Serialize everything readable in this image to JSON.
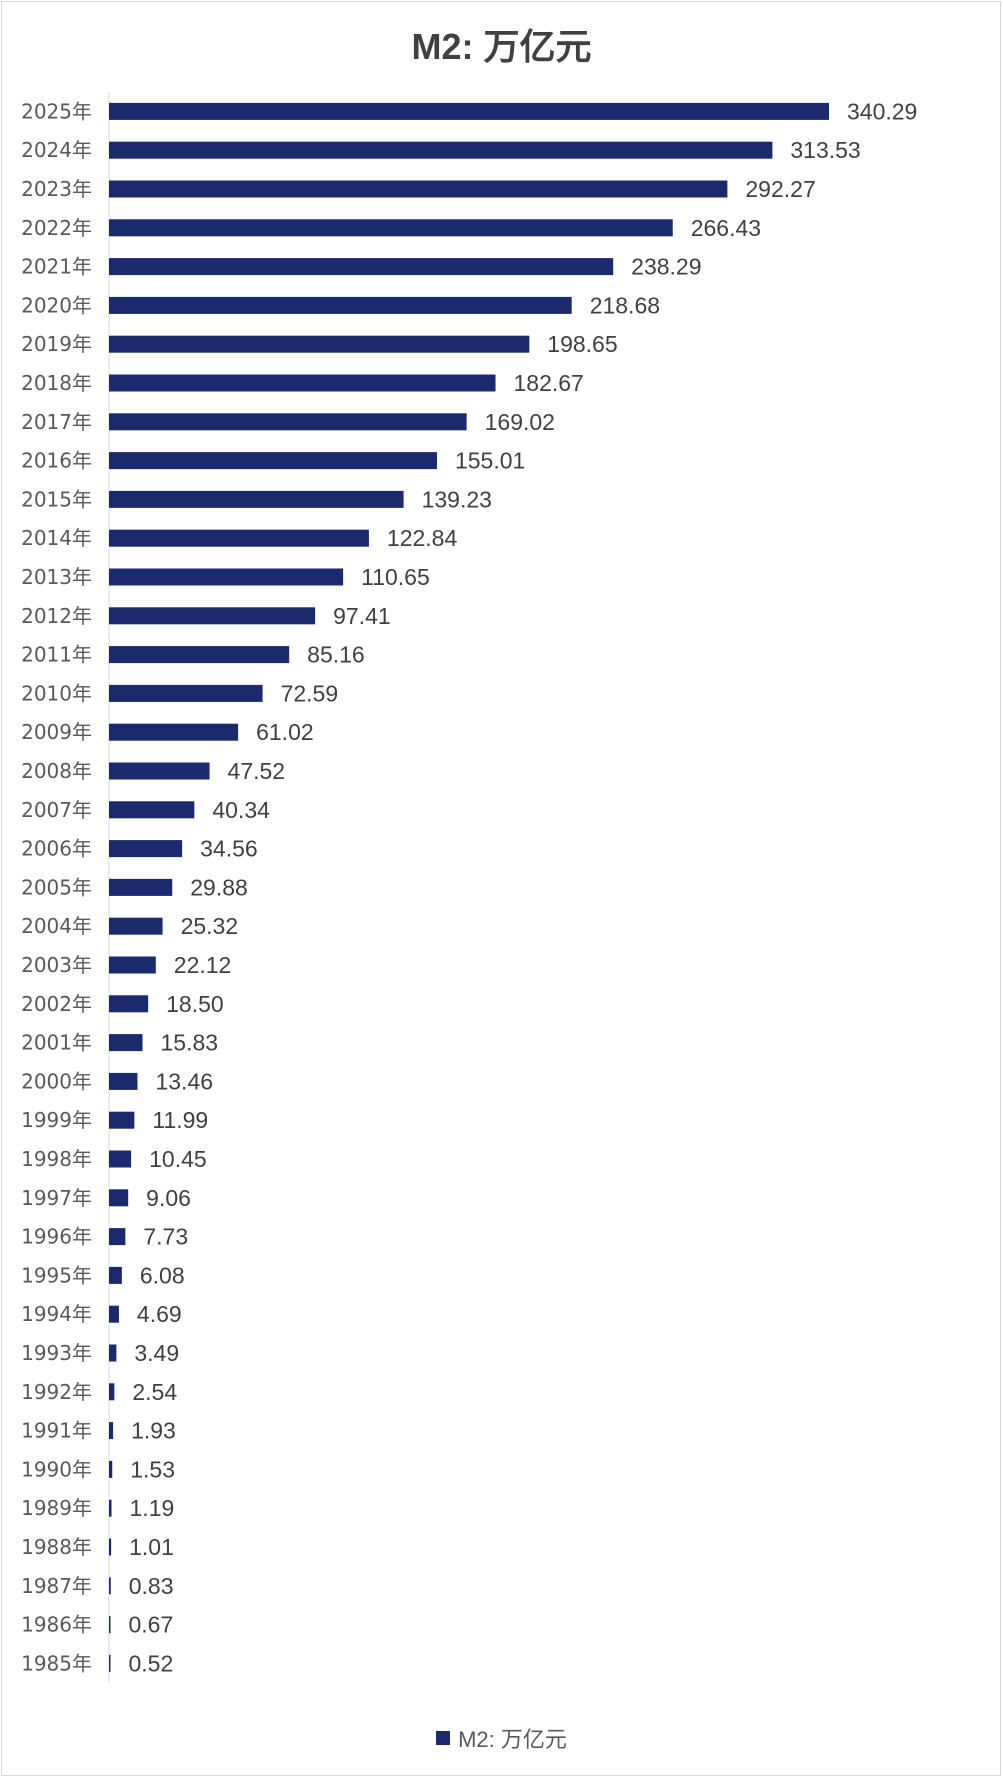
{
  "chart_data": {
    "type": "bar",
    "orientation": "horizontal",
    "title": "M2: 万亿元",
    "categories": [
      "2025年",
      "2024年",
      "2023年",
      "2022年",
      "2021年",
      "2020年",
      "2019年",
      "2018年",
      "2017年",
      "2016年",
      "2015年",
      "2014年",
      "2013年",
      "2012年",
      "2011年",
      "2010年",
      "2009年",
      "2008年",
      "2007年",
      "2006年",
      "2005年",
      "2004年",
      "2003年",
      "2002年",
      "2001年",
      "2000年",
      "1999年",
      "1998年",
      "1997年",
      "1996年",
      "1995年",
      "1994年",
      "1993年",
      "1992年",
      "1991年",
      "1990年",
      "1989年",
      "1988年",
      "1987年",
      "1986年",
      "1985年"
    ],
    "series": [
      {
        "name": "M2: 万亿元",
        "values": [
          340.29,
          313.53,
          292.27,
          266.43,
          238.29,
          218.68,
          198.65,
          182.67,
          169.02,
          155.01,
          139.23,
          122.84,
          110.65,
          97.41,
          85.16,
          72.59,
          61.02,
          47.52,
          40.34,
          34.56,
          29.88,
          25.32,
          22.12,
          18.5,
          15.83,
          13.46,
          11.99,
          10.45,
          9.06,
          7.73,
          6.08,
          4.69,
          3.49,
          2.54,
          1.93,
          1.53,
          1.19,
          1.01,
          0.83,
          0.67,
          0.52
        ],
        "labels": [
          "340.29",
          "313.53",
          "292.27",
          "266.43",
          "238.29",
          "218.68",
          "198.65",
          "182.67",
          "169.02",
          "155.01",
          "139.23",
          "122.84",
          "110.65",
          "97.41",
          "85.16",
          "72.59",
          "61.02",
          "47.52",
          "40.34",
          "34.56",
          "29.88",
          "25.32",
          "22.12",
          "18.50",
          "15.83",
          "13.46",
          "11.99",
          "10.45",
          "9.06",
          "7.73",
          "6.08",
          "4.69",
          "3.49",
          "2.54",
          "1.93",
          "1.53",
          "1.19",
          "1.01",
          "0.83",
          "0.67",
          "0.52"
        ]
      }
    ],
    "legend": "bottom",
    "grid": false,
    "data_labels": true
  },
  "colors": {
    "bar": "#1a2a6c",
    "axis": "#d9d9d9"
  }
}
